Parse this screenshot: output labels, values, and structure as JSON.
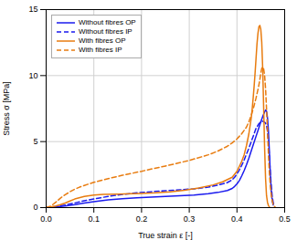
{
  "chart_data": {
    "type": "line",
    "xlabel": "True strain ε [-]",
    "ylabel": "Stress σ [MPa]",
    "xlim": [
      0,
      0.5
    ],
    "ylim": [
      0,
      15
    ],
    "xticks": [
      {
        "value": 0,
        "label": "0.0"
      },
      0.1,
      0.2,
      0.3,
      0.4,
      0.5
    ],
    "yticks": [
      0,
      5,
      10,
      15
    ],
    "grid": true,
    "legend": "upper left",
    "series": [
      {
        "name": "Without fibres OP",
        "color": "#1a1aee",
        "line_style": "solid",
        "x": [
          0.0,
          0.02,
          0.04,
          0.06,
          0.08,
          0.1,
          0.13,
          0.16,
          0.19,
          0.22,
          0.25,
          0.28,
          0.31,
          0.34,
          0.36,
          0.38,
          0.39,
          0.395,
          0.4,
          0.405,
          0.41,
          0.415,
          0.42,
          0.425,
          0.43,
          0.435,
          0.44,
          0.445,
          0.45,
          0.455,
          0.46,
          0.462,
          0.464,
          0.466,
          0.468,
          0.47,
          0.472,
          0.474,
          0.476
        ],
        "values": [
          0.0,
          0.05,
          0.12,
          0.22,
          0.35,
          0.45,
          0.58,
          0.68,
          0.75,
          0.8,
          0.85,
          0.9,
          0.95,
          1.05,
          1.15,
          1.3,
          1.45,
          1.6,
          1.8,
          2.05,
          2.4,
          2.8,
          3.25,
          3.75,
          4.3,
          4.85,
          5.4,
          5.95,
          6.5,
          7.0,
          7.4,
          7.3,
          6.8,
          5.8,
          4.2,
          2.5,
          1.2,
          0.5,
          0.2
        ]
      },
      {
        "name": "Without fibres IP",
        "color": "#1a1aee",
        "line_style": "dashed",
        "x": [
          0.0,
          0.02,
          0.04,
          0.06,
          0.08,
          0.1,
          0.13,
          0.16,
          0.19,
          0.22,
          0.25,
          0.28,
          0.31,
          0.34,
          0.36,
          0.38,
          0.39,
          0.395,
          0.4,
          0.405,
          0.41,
          0.415,
          0.42,
          0.425,
          0.43,
          0.435,
          0.44,
          0.445,
          0.45,
          0.455,
          0.46,
          0.462,
          0.464,
          0.466,
          0.468,
          0.47,
          0.472,
          0.474,
          0.476,
          0.478
        ],
        "values": [
          0.0,
          0.08,
          0.2,
          0.35,
          0.52,
          0.65,
          0.85,
          1.0,
          1.12,
          1.2,
          1.28,
          1.35,
          1.42,
          1.55,
          1.7,
          1.9,
          2.1,
          2.3,
          2.55,
          2.85,
          3.2,
          3.6,
          4.05,
          4.5,
          5.0,
          5.5,
          6.0,
          6.3,
          6.5,
          6.55,
          6.4,
          6.2,
          5.8,
          5.0,
          3.8,
          2.6,
          1.6,
          0.8,
          0.4,
          0.2
        ]
      },
      {
        "name": "With fibres OP",
        "color": "#e87c10",
        "line_style": "solid",
        "x": [
          0.0,
          0.01,
          0.02,
          0.03,
          0.04,
          0.05,
          0.06,
          0.08,
          0.1,
          0.12,
          0.15,
          0.18,
          0.2,
          0.23,
          0.26,
          0.29,
          0.32,
          0.35,
          0.37,
          0.39,
          0.4,
          0.41,
          0.415,
          0.42,
          0.425,
          0.43,
          0.432,
          0.434,
          0.436,
          0.438,
          0.44,
          0.442,
          0.444,
          0.446,
          0.448,
          0.45,
          0.452,
          0.454,
          0.456,
          0.458,
          0.46,
          0.462,
          0.464,
          0.466,
          0.468
        ],
        "values": [
          0.0,
          0.05,
          0.12,
          0.22,
          0.35,
          0.5,
          0.65,
          0.85,
          0.95,
          1.0,
          1.02,
          1.05,
          1.08,
          1.12,
          1.2,
          1.32,
          1.48,
          1.72,
          1.95,
          2.3,
          2.75,
          3.5,
          4.0,
          4.7,
          5.6,
          6.8,
          7.5,
          8.3,
          9.2,
          10.2,
          11.3,
          12.4,
          13.2,
          13.7,
          13.8,
          13.5,
          12.5,
          10.5,
          7.5,
          4.5,
          2.2,
          0.9,
          0.4,
          0.15,
          0.05
        ]
      },
      {
        "name": "With fibres IP",
        "color": "#e87c10",
        "line_style": "dashed",
        "x": [
          0.0,
          0.01,
          0.02,
          0.03,
          0.04,
          0.05,
          0.06,
          0.07,
          0.08,
          0.09,
          0.1,
          0.12,
          0.14,
          0.16,
          0.18,
          0.2,
          0.22,
          0.25,
          0.28,
          0.3,
          0.32,
          0.34,
          0.36,
          0.38,
          0.39,
          0.4,
          0.41,
          0.42,
          0.425,
          0.43,
          0.435,
          0.44,
          0.445,
          0.448,
          0.45,
          0.452,
          0.454,
          0.456,
          0.458,
          0.46,
          0.462,
          0.464,
          0.466,
          0.468,
          0.47,
          0.472,
          0.474,
          0.476,
          0.478,
          0.48
        ],
        "values": [
          0.0,
          0.12,
          0.4,
          0.72,
          0.98,
          1.2,
          1.4,
          1.55,
          1.68,
          1.8,
          1.92,
          2.1,
          2.28,
          2.45,
          2.6,
          2.75,
          2.92,
          3.15,
          3.4,
          3.58,
          3.78,
          4.0,
          4.28,
          4.65,
          4.9,
          5.2,
          5.6,
          6.1,
          6.5,
          7.0,
          7.6,
          8.3,
          9.1,
          9.7,
          10.2,
          10.55,
          10.65,
          10.5,
          10.0,
          9.0,
          7.5,
          5.8,
          4.0,
          2.6,
          1.6,
          0.9,
          0.5,
          0.25,
          0.1,
          0.05
        ]
      }
    ]
  }
}
